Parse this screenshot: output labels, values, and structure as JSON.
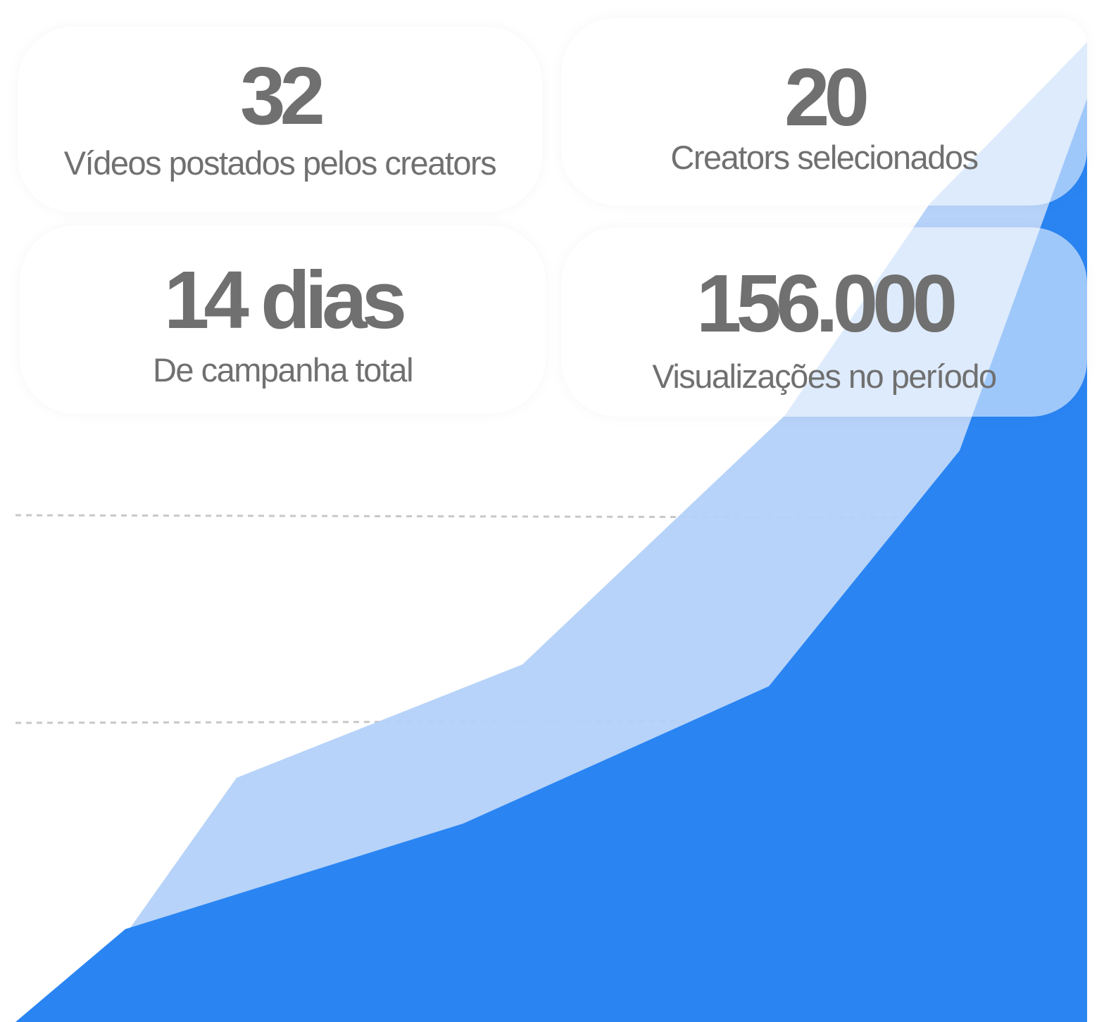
{
  "stats": [
    {
      "value": "32",
      "label": "Vídeos postados pelos creators"
    },
    {
      "value": "20",
      "label": "Creators selecionados"
    },
    {
      "value": "14 dias",
      "label": "De campanha total"
    },
    {
      "value": "156.000",
      "label": "Visualizações no período"
    }
  ],
  "colors": {
    "primary_area": "#2a85f3",
    "secondary_area": "#b3d1f9",
    "text": "#707070",
    "gridline": "#cccccc"
  }
}
